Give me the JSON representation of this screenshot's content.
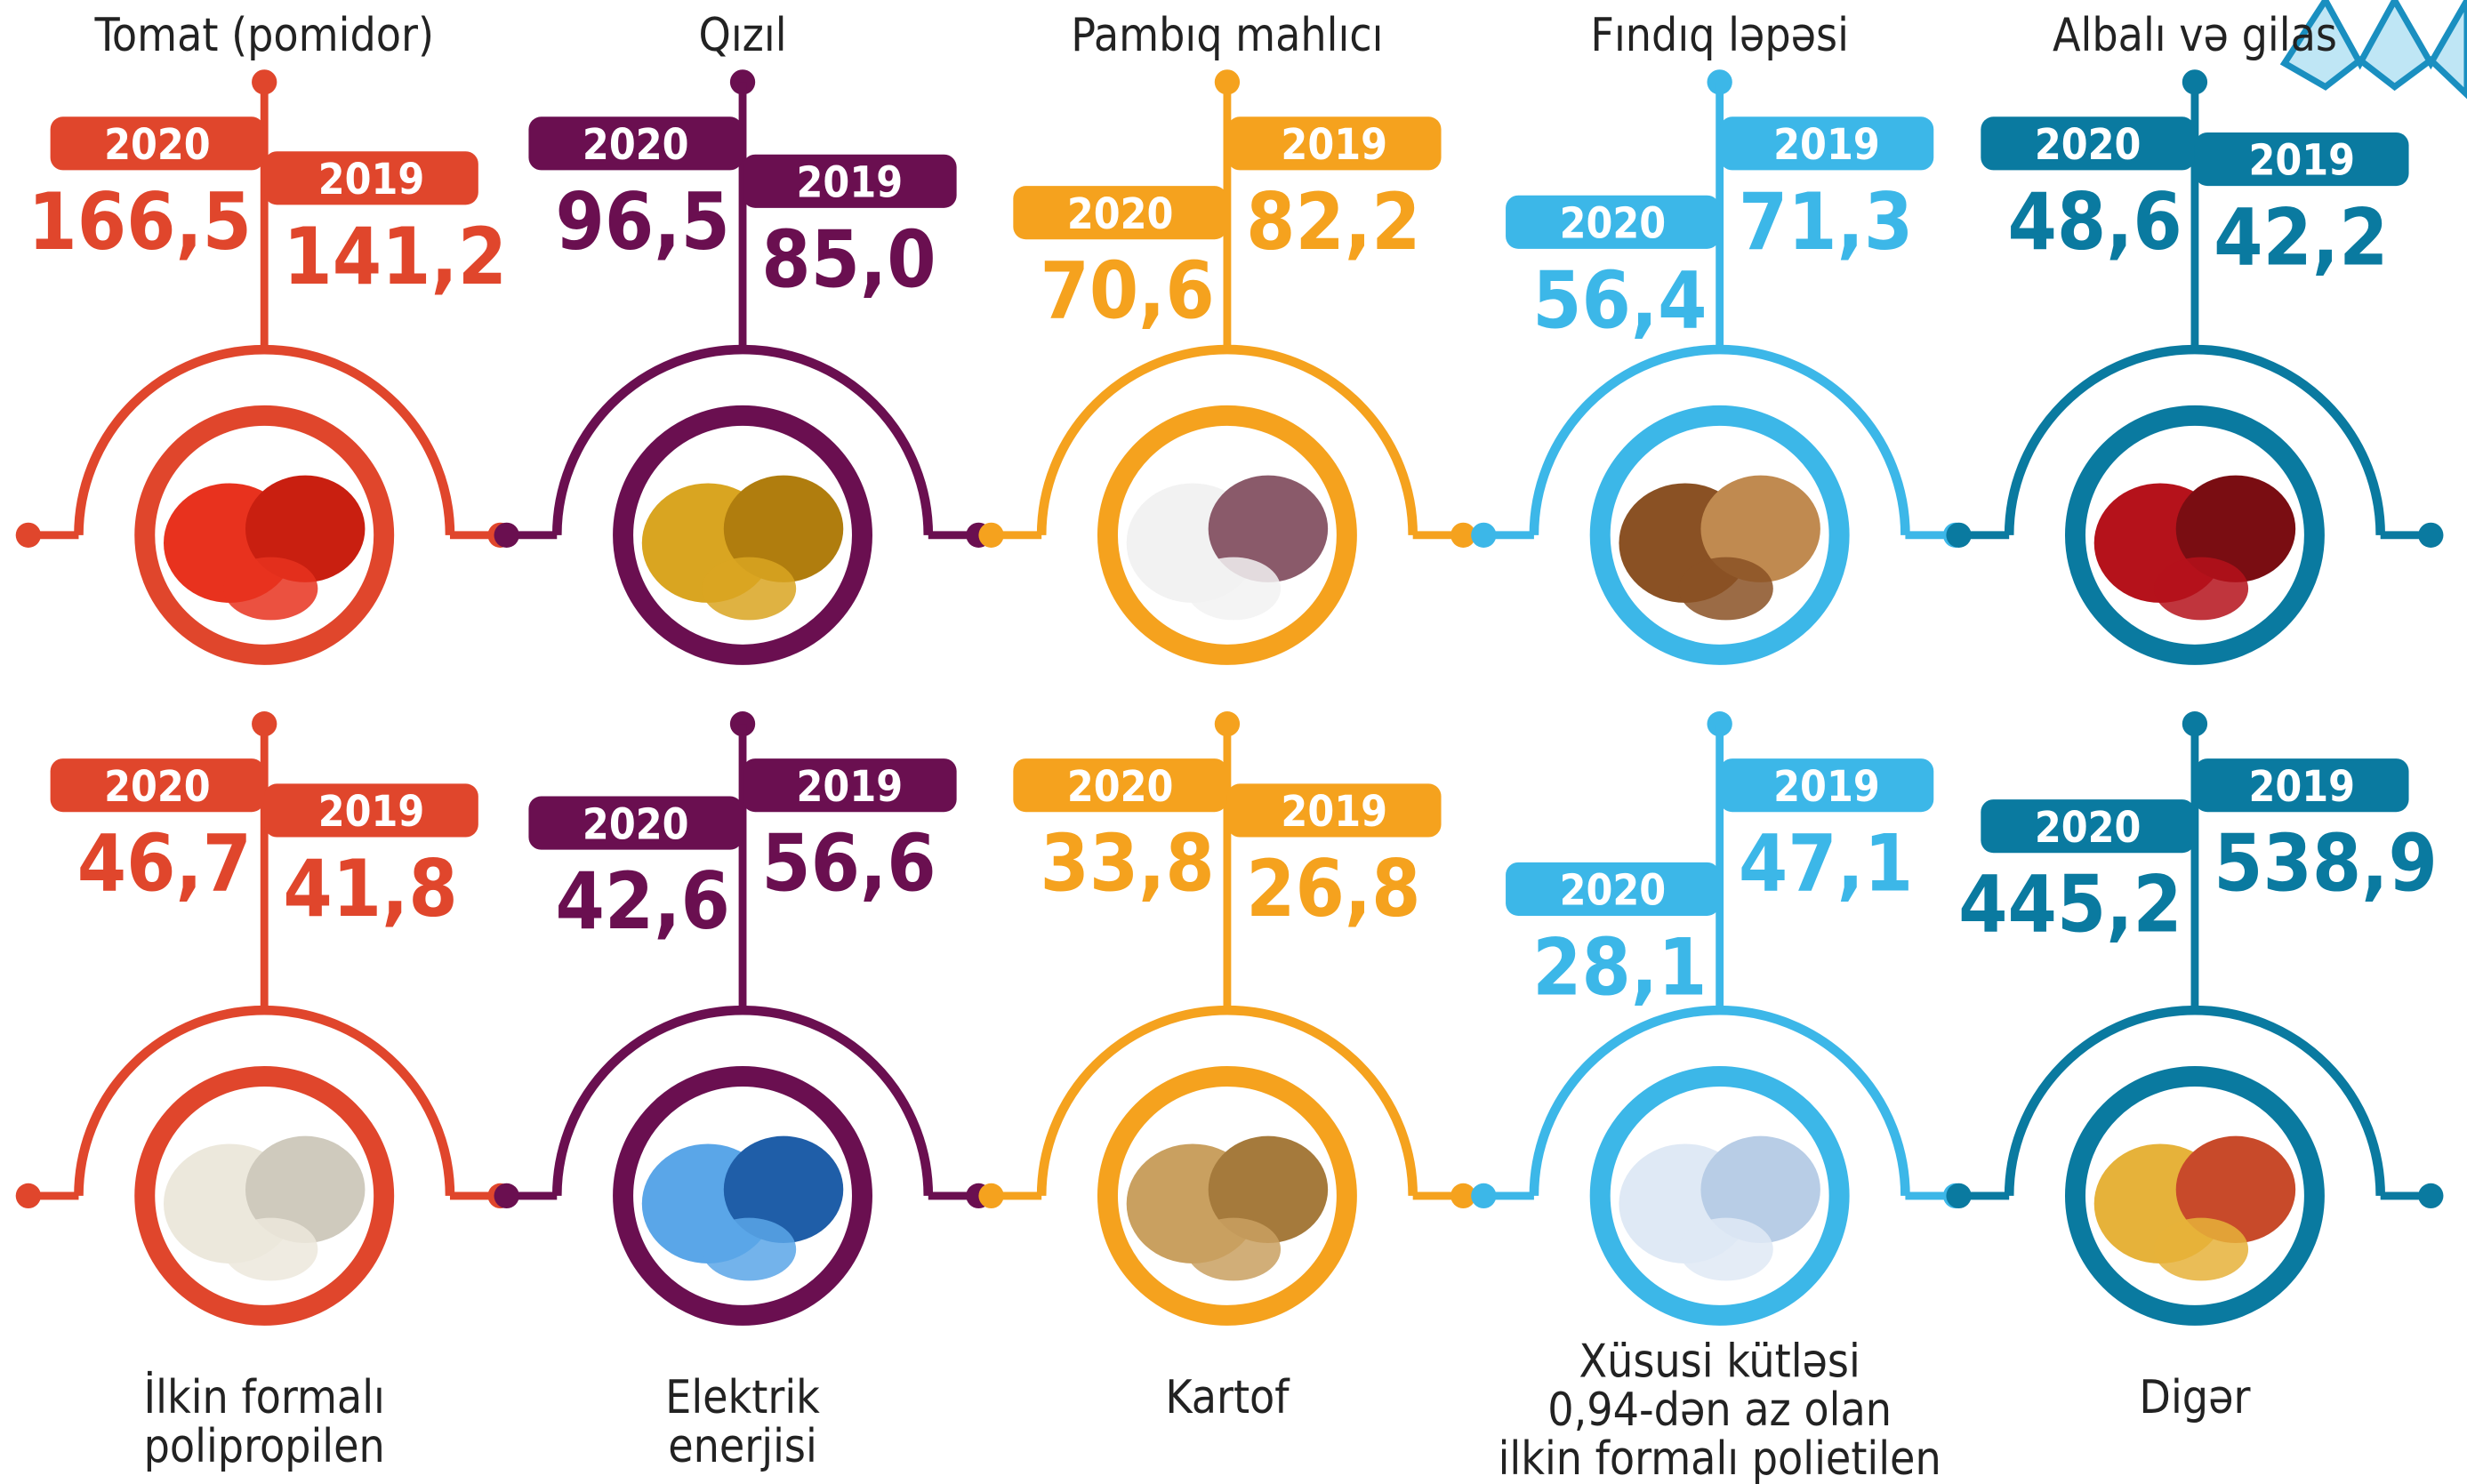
{
  "items": [
    {
      "label_lines": [
        "Tomat (pomidor)"
      ],
      "year_a": "2020",
      "value_a": "166,5",
      "year_b": "2019",
      "value_b": "141,2"
    },
    {
      "label_lines": [
        "Qızıl"
      ],
      "year_a": "2020",
      "value_a": "96,5",
      "year_b": "2019",
      "value_b": "85,0"
    },
    {
      "label_lines": [
        "Pambıq mahlıcı"
      ],
      "year_a": "2020",
      "value_a": "70,6",
      "year_b": "2019",
      "value_b": "82,2"
    },
    {
      "label_lines": [
        "Fındıq ləpəsi"
      ],
      "year_a": "2020",
      "value_a": "56,4",
      "year_b": "2019",
      "value_b": "71,3"
    },
    {
      "label_lines": [
        "Albalı və gilas"
      ],
      "year_a": "2020",
      "value_a": "48,6",
      "year_b": "2019",
      "value_b": "42,2"
    },
    {
      "label_lines": [
        "İlkin formalı",
        "polipropilen"
      ],
      "year_a": "2020",
      "value_a": "46,7",
      "year_b": "2019",
      "value_b": "41,8"
    },
    {
      "label_lines": [
        "Elektrik",
        "enerjisi"
      ],
      "year_a": "2020",
      "value_a": "42,6",
      "year_b": "2019",
      "value_b": "56,6"
    },
    {
      "label_lines": [
        "Kartof"
      ],
      "year_a": "2020",
      "value_a": "33,8",
      "year_b": "2019",
      "value_b": "26,8"
    },
    {
      "label_lines": [
        "Xüsusi kütləsi",
        "0,94-dən az olan",
        "ilkin formalı polietilen"
      ],
      "year_a": "2020",
      "value_a": "28,1",
      "year_b": "2019",
      "value_b": "47,1"
    },
    {
      "label_lines": [
        "Digər"
      ],
      "year_a": "2020",
      "value_a": "445,2",
      "year_b": "2019",
      "value_b": "538,9"
    }
  ]
}
